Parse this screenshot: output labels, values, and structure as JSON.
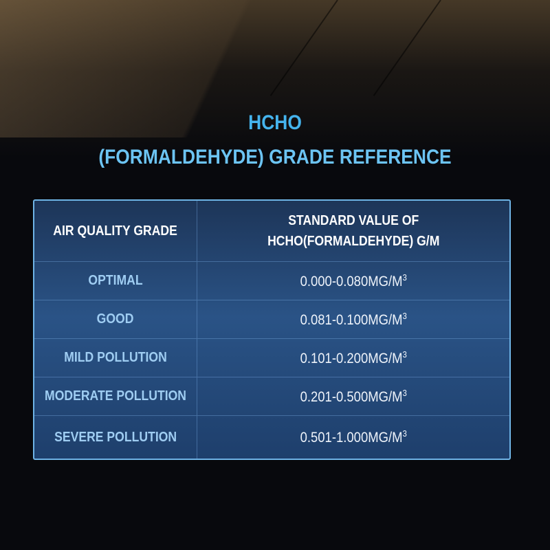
{
  "title": {
    "line1": "HCHO",
    "line2": "(FORMALDEHYDE) GRADE REFERENCE"
  },
  "table": {
    "headers": [
      "AIR QUALITY GRADE",
      "STANDARD VALUE OF",
      "HCHO(FORMALDEHYDE) G/M"
    ],
    "unit_superscript": "3",
    "rows": [
      {
        "grade": "OPTIMAL",
        "value": "0.000-0.080MG/M"
      },
      {
        "grade": "GOOD",
        "value": "0.081-0.100MG/M"
      },
      {
        "grade": "MILD POLLUTION",
        "value": "0.101-0.200MG/M"
      },
      {
        "grade": "MODERATE POLLUTION",
        "value": "0.201-0.500MG/M"
      },
      {
        "grade": "SEVERE POLLUTION",
        "value": "0.501-1.000MG/M"
      }
    ]
  },
  "colors": {
    "title": "#45b4ee",
    "grade_text": "#9fcdf2",
    "border": "#6fb4e6",
    "background": "#08090d"
  }
}
